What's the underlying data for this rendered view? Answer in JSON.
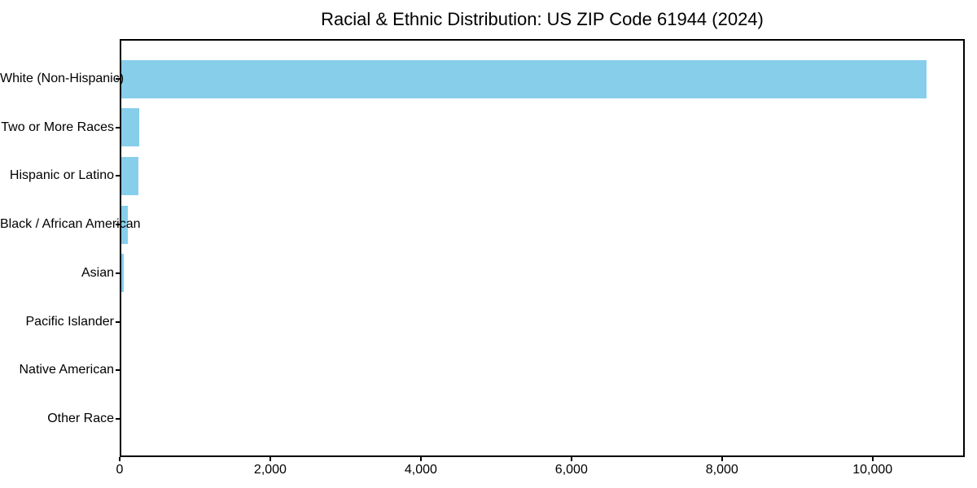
{
  "chart_data": {
    "type": "bar",
    "orientation": "horizontal",
    "title": "Racial & Ethnic Distribution: US ZIP Code 61944 (2024)",
    "categories": [
      "White (Non-Hispanic)",
      "Two or More Races",
      "Hispanic or Latino",
      "Black / African American",
      "Asian",
      "Pacific Islander",
      "Native American",
      "Other Race"
    ],
    "values": [
      10690,
      240,
      225,
      90,
      30,
      0,
      0,
      0
    ],
    "xlabel": "",
    "ylabel": "",
    "xlim": [
      0,
      11225
    ],
    "x_ticks": [
      0,
      2000,
      4000,
      6000,
      8000,
      10000
    ],
    "x_tick_labels": [
      "0",
      "2,000",
      "4,000",
      "6,000",
      "8,000",
      "10,000"
    ],
    "bar_color": "#87CEEB",
    "axis_color": "#000000",
    "text_color": "#000000",
    "background_color": "#ffffff",
    "grid": false,
    "legend": "none",
    "value_labels_shown": false
  }
}
